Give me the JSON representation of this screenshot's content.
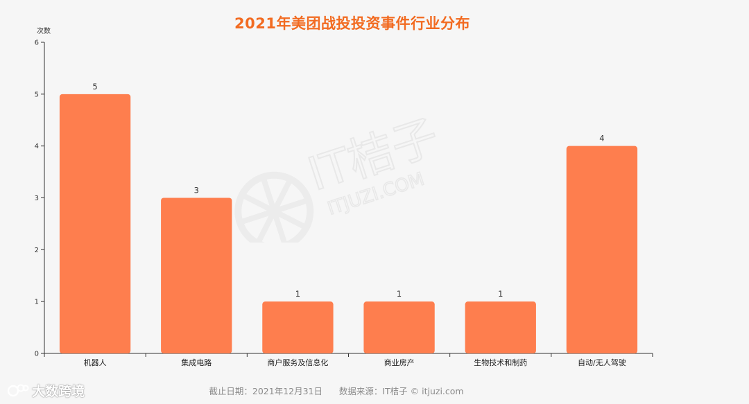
{
  "title": "2021年美团战投投资事件行业分布",
  "watermark": {
    "brand": "IT桔子",
    "url": "ITJUZI.COM"
  },
  "footer": {
    "date_label": "截止日期：2021年12月31日",
    "source_label": "数据来源：IT桔子 © itjuzi.com"
  },
  "brand_badge": {
    "text": "大数跨境"
  },
  "colors": {
    "bar": "#fe7e4e",
    "title": "#f26b21",
    "axis": "#333333"
  },
  "chart_data": {
    "type": "bar",
    "title": "2021年美团战投投资事件行业分布",
    "ylabel": "次数",
    "xlabel": "",
    "ylim": [
      0,
      6
    ],
    "yticks": [
      0,
      1,
      2,
      3,
      4,
      5,
      6
    ],
    "categories": [
      "机器人",
      "集成电路",
      "商户服务及信息化",
      "商业房产",
      "生物技术和制药",
      "自动/无人驾驶"
    ],
    "values": [
      5,
      3,
      1,
      1,
      1,
      4
    ],
    "data_labels": true,
    "grid": false,
    "legend": "none"
  }
}
